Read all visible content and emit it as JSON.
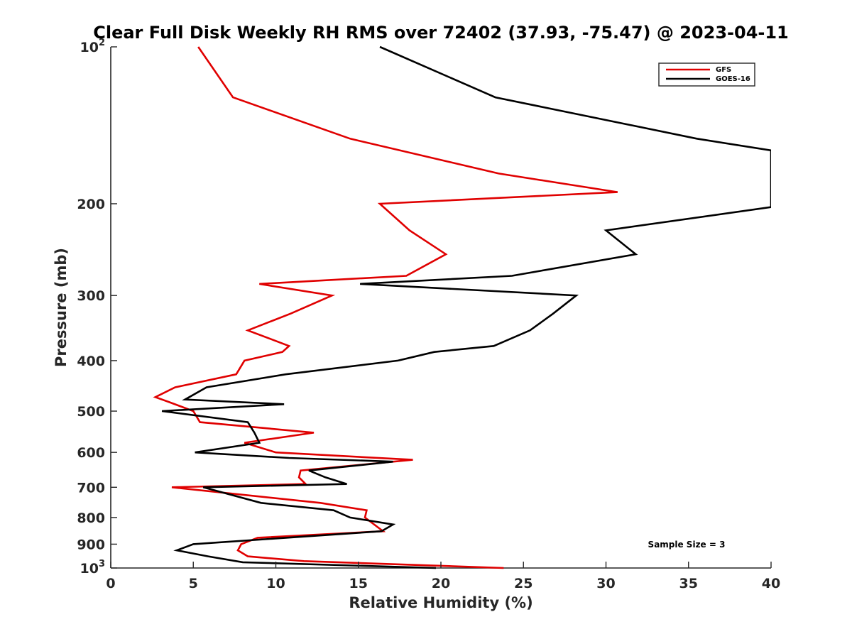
{
  "chart_data": {
    "type": "line",
    "title": "Clear Full Disk Weekly RH RMS over 72402 (37.93, -75.47) @ 2023-04-11",
    "xlabel": "Relative Humidity (%)",
    "ylabel": "Pressure (mb)",
    "xlim": [
      0,
      40
    ],
    "ylim": [
      100,
      1000
    ],
    "yscale": "log",
    "y_reversed": true,
    "xticks": [
      {
        "value": 0,
        "label": "0"
      },
      {
        "value": 5,
        "label": "5"
      },
      {
        "value": 10,
        "label": "10"
      },
      {
        "value": 15,
        "label": "15"
      },
      {
        "value": 20,
        "label": "20"
      },
      {
        "value": 25,
        "label": "25"
      },
      {
        "value": 30,
        "label": "30"
      },
      {
        "value": 35,
        "label": "35"
      },
      {
        "value": 40,
        "label": "40"
      }
    ],
    "yticks": [
      {
        "value": 100,
        "base": "10",
        "exp": "2"
      },
      {
        "value": 200,
        "label": "200"
      },
      {
        "value": 300,
        "label": "300"
      },
      {
        "value": 400,
        "label": "400"
      },
      {
        "value": 500,
        "label": "500"
      },
      {
        "value": 600,
        "label": "600"
      },
      {
        "value": 700,
        "label": "700"
      },
      {
        "value": 800,
        "label": "800"
      },
      {
        "value": 900,
        "label": "900"
      },
      {
        "value": 1000,
        "base": "10",
        "exp": "3"
      }
    ],
    "legend": {
      "position": "top-right"
    },
    "annotation": "Sample Size = 3",
    "series": [
      {
        "name": "GFS",
        "color": "#e00000",
        "points": [
          [
            5.3,
            100
          ],
          [
            7.4,
            125
          ],
          [
            14.5,
            150
          ],
          [
            23.5,
            175
          ],
          [
            30.7,
            190
          ],
          [
            16.3,
            200
          ],
          [
            18.1,
            225
          ],
          [
            20.3,
            250
          ],
          [
            17.9,
            275
          ],
          [
            9.0,
            285
          ],
          [
            13.4,
            300
          ],
          [
            10.9,
            325
          ],
          [
            8.3,
            350
          ],
          [
            10.8,
            375
          ],
          [
            10.4,
            385
          ],
          [
            8.1,
            400
          ],
          [
            7.6,
            425
          ],
          [
            3.9,
            450
          ],
          [
            2.7,
            470
          ],
          [
            3.5,
            480
          ],
          [
            5.0,
            500
          ],
          [
            5.4,
            525
          ],
          [
            12.3,
            550
          ],
          [
            8.1,
            575
          ],
          [
            10.0,
            600
          ],
          [
            18.3,
            620
          ],
          [
            11.5,
            650
          ],
          [
            11.4,
            670
          ],
          [
            11.8,
            690
          ],
          [
            3.7,
            700
          ],
          [
            12.7,
            750
          ],
          [
            15.5,
            775
          ],
          [
            15.4,
            800
          ],
          [
            16.5,
            850
          ],
          [
            8.9,
            875
          ],
          [
            7.9,
            900
          ],
          [
            7.7,
            925
          ],
          [
            8.3,
            950
          ],
          [
            11.7,
            970
          ],
          [
            23.8,
            1000
          ]
        ]
      },
      {
        "name": "GOES-16",
        "color": "#000000",
        "points": [
          [
            16.3,
            100
          ],
          [
            23.3,
            125
          ],
          [
            35.5,
            150
          ],
          [
            40.0,
            158
          ],
          [
            40.0,
            203
          ],
          [
            30.0,
            225
          ],
          [
            31.8,
            250
          ],
          [
            24.3,
            275
          ],
          [
            15.1,
            285
          ],
          [
            28.2,
            300
          ],
          [
            26.8,
            325
          ],
          [
            25.4,
            350
          ],
          [
            23.2,
            375
          ],
          [
            19.6,
            385
          ],
          [
            17.4,
            400
          ],
          [
            10.6,
            425
          ],
          [
            5.8,
            450
          ],
          [
            4.5,
            475
          ],
          [
            10.5,
            485
          ],
          [
            3.1,
            500
          ],
          [
            8.3,
            525
          ],
          [
            8.7,
            550
          ],
          [
            9.0,
            575
          ],
          [
            5.1,
            600
          ],
          [
            10.8,
            615
          ],
          [
            17.1,
            625
          ],
          [
            12.0,
            650
          ],
          [
            13.0,
            670
          ],
          [
            14.3,
            690
          ],
          [
            5.6,
            700
          ],
          [
            9.1,
            750
          ],
          [
            13.5,
            775
          ],
          [
            14.5,
            800
          ],
          [
            17.1,
            825
          ],
          [
            16.4,
            850
          ],
          [
            5.0,
            900
          ],
          [
            4.0,
            925
          ],
          [
            5.9,
            950
          ],
          [
            8.0,
            975
          ],
          [
            19.7,
            1000
          ]
        ]
      }
    ]
  }
}
